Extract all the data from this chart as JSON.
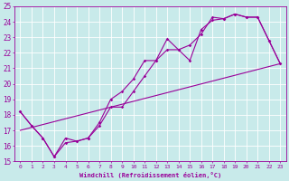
{
  "xlabel": "Windchill (Refroidissement éolien,°C)",
  "ylabel": "",
  "xlim": [
    -0.5,
    23.5
  ],
  "ylim": [
    15,
    25
  ],
  "xticks": [
    0,
    1,
    2,
    3,
    4,
    5,
    6,
    7,
    8,
    9,
    10,
    11,
    12,
    13,
    14,
    15,
    16,
    17,
    18,
    19,
    20,
    21,
    22,
    23
  ],
  "yticks": [
    15,
    16,
    17,
    18,
    19,
    20,
    21,
    22,
    23,
    24,
    25
  ],
  "bg_color": "#c8eaea",
  "line_color": "#990099",
  "grid_color": "#aacccc",
  "line1_x": [
    0,
    1,
    2,
    3,
    4,
    5,
    6,
    7,
    8,
    9,
    10,
    11,
    12,
    13,
    14,
    15,
    16,
    17,
    18,
    19,
    20,
    21,
    22,
    23
  ],
  "line1_y": [
    18.2,
    17.3,
    16.5,
    15.3,
    16.5,
    16.3,
    16.5,
    17.3,
    18.5,
    18.5,
    19.5,
    20.5,
    21.5,
    22.9,
    22.2,
    22.5,
    23.2,
    24.3,
    24.2,
    24.5,
    24.3,
    24.3,
    22.8,
    21.3
  ],
  "line2_x": [
    0,
    1,
    2,
    3,
    4,
    5,
    6,
    7,
    8,
    9,
    10,
    11,
    12,
    13,
    14,
    15,
    16,
    17,
    18,
    19,
    20,
    21,
    22,
    23
  ],
  "line2_y": [
    18.2,
    17.3,
    16.5,
    15.3,
    16.2,
    16.3,
    16.5,
    17.5,
    19.0,
    19.5,
    20.3,
    21.5,
    21.5,
    22.2,
    22.2,
    21.5,
    23.5,
    24.1,
    24.2,
    24.5,
    24.3,
    24.3,
    22.8,
    21.3
  ],
  "line3_x": [
    0,
    23
  ],
  "line3_y": [
    17.0,
    21.3
  ],
  "xlabel_fontsize": 5.0,
  "ytick_fontsize": 5.5,
  "xtick_fontsize": 4.5
}
